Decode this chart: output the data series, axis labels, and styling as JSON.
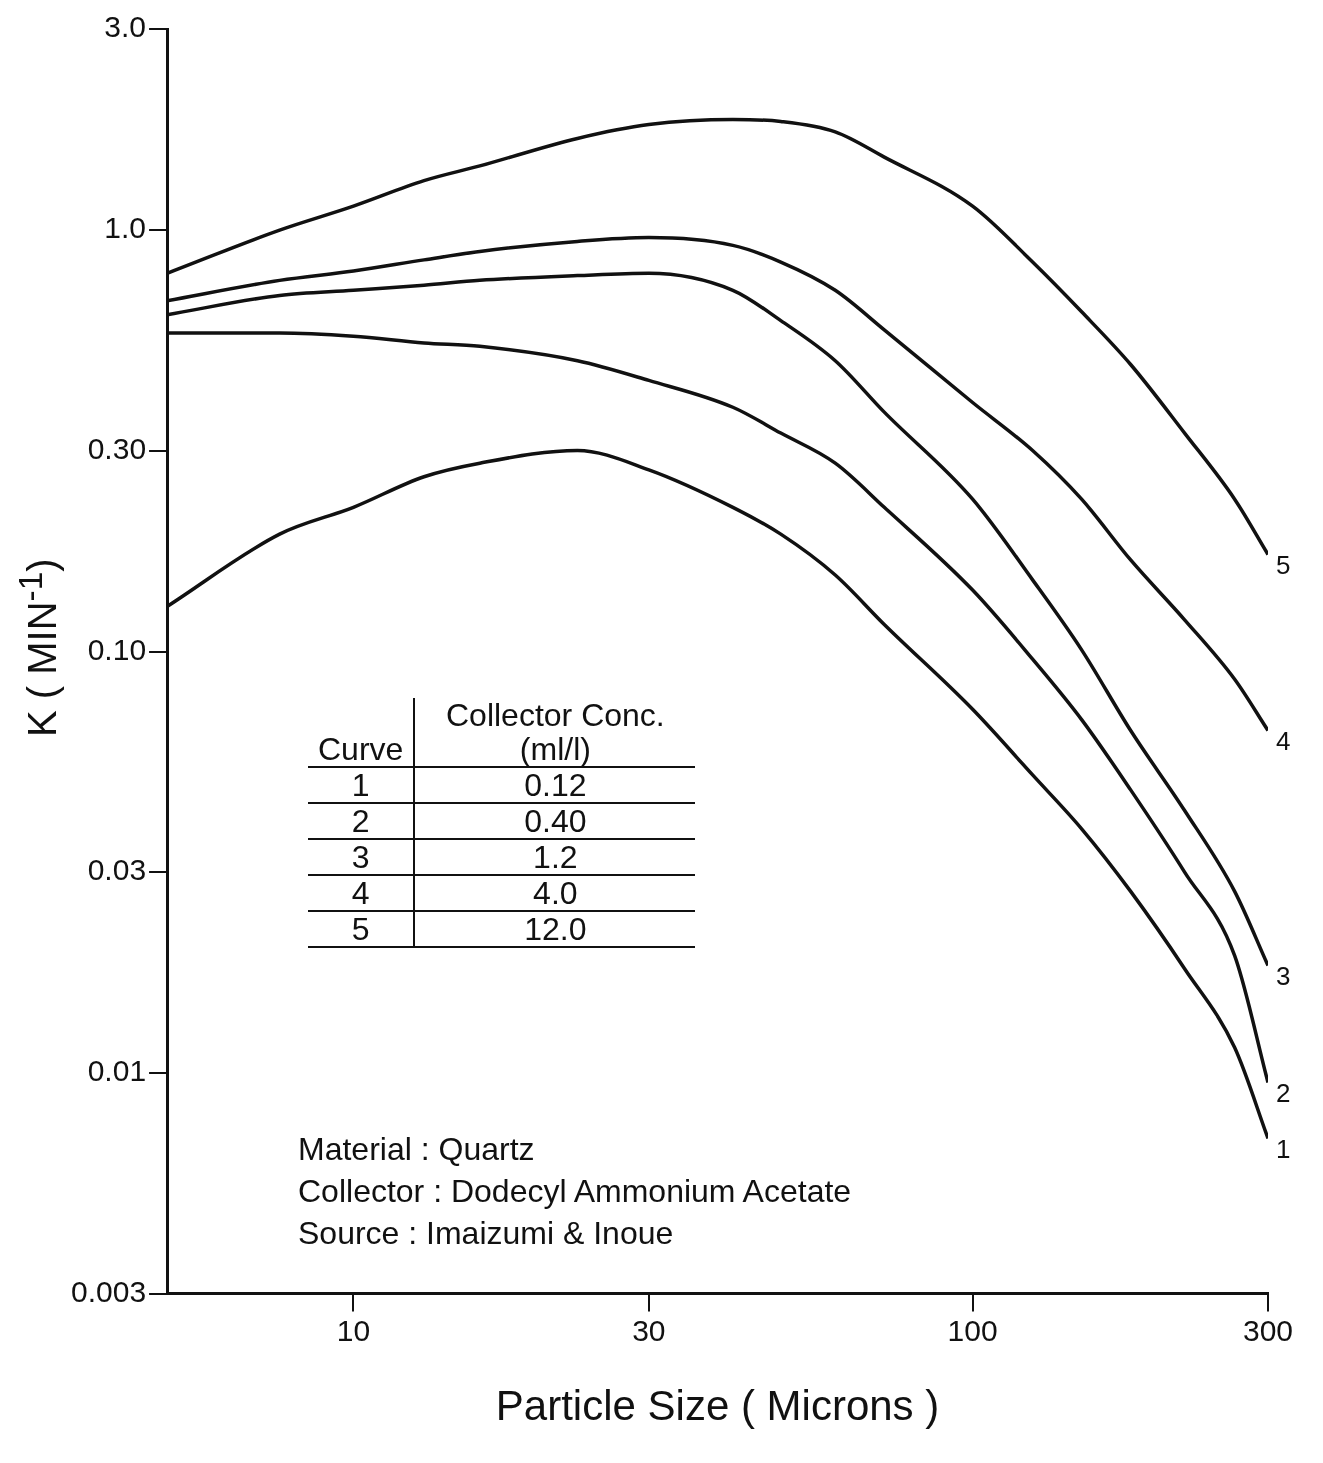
{
  "chart_data": {
    "type": "line",
    "xlabel": "Particle Size ( Microns )",
    "ylabel": "K ( MIN$^{-1}$)",
    "x": [
      5,
      7.6,
      10,
      13,
      16,
      23,
      30,
      41,
      49,
      60,
      72,
      100,
      125,
      150,
      180,
      220,
      265,
      300
    ],
    "series": [
      {
        "name": "1",
        "color": "#111111",
        "values": [
          0.128,
          0.19,
          0.22,
          0.26,
          0.28,
          0.3,
          0.27,
          0.22,
          0.19,
          0.152,
          0.116,
          0.073,
          0.051,
          0.038,
          0.027,
          0.0177,
          0.0115,
          0.007
        ]
      },
      {
        "name": "2",
        "color": "#111111",
        "values": [
          0.57,
          0.57,
          0.56,
          0.54,
          0.53,
          0.49,
          0.44,
          0.38,
          0.33,
          0.28,
          0.22,
          0.14,
          0.096,
          0.069,
          0.047,
          0.03,
          0.019,
          0.0095
        ]
      },
      {
        "name": "3",
        "color": "#111111",
        "values": [
          0.63,
          0.7,
          0.72,
          0.74,
          0.76,
          0.78,
          0.79,
          0.72,
          0.61,
          0.49,
          0.37,
          0.23,
          0.148,
          0.101,
          0.065,
          0.042,
          0.027,
          0.018
        ]
      },
      {
        "name": "4",
        "color": "#111111",
        "values": [
          0.68,
          0.76,
          0.8,
          0.85,
          0.89,
          0.94,
          0.96,
          0.92,
          0.84,
          0.72,
          0.58,
          0.39,
          0.3,
          0.23,
          0.165,
          0.119,
          0.086,
          0.065
        ]
      },
      {
        "name": "5",
        "color": "#111111",
        "values": [
          0.79,
          1.0,
          1.14,
          1.31,
          1.42,
          1.65,
          1.78,
          1.83,
          1.81,
          1.71,
          1.49,
          1.14,
          0.84,
          0.64,
          0.48,
          0.33,
          0.23,
          0.17
        ]
      }
    ],
    "xlim": [
      5,
      300
    ],
    "xticks": [
      10,
      30,
      100,
      300
    ],
    "ylim": [
      0.003,
      3
    ],
    "yticks": [
      {
        "value": 0.003,
        "label": "0.003"
      },
      {
        "value": 0.01,
        "label": "0.01"
      },
      {
        "value": 0.03,
        "label": "0.03"
      },
      {
        "value": 0.1,
        "label": "0.10"
      },
      {
        "value": 0.3,
        "label": "0.30"
      },
      {
        "value": 1,
        "label": "1.0"
      },
      {
        "value": 3,
        "label": "3.0"
      }
    ],
    "log": "xy",
    "grid": false,
    "legend": "left",
    "marker": "none",
    "line_style": "solid",
    "annotations": [
      "Curve",
      "Collector Conc. (ml/l)",
      "0.12",
      "0.40",
      "1.2",
      "4.0",
      "12.0",
      "Material : Quartz",
      "Collector : Dodecyl Ammonium Acetate",
      "Source : Imaizumi & Inoue"
    ]
  }
}
